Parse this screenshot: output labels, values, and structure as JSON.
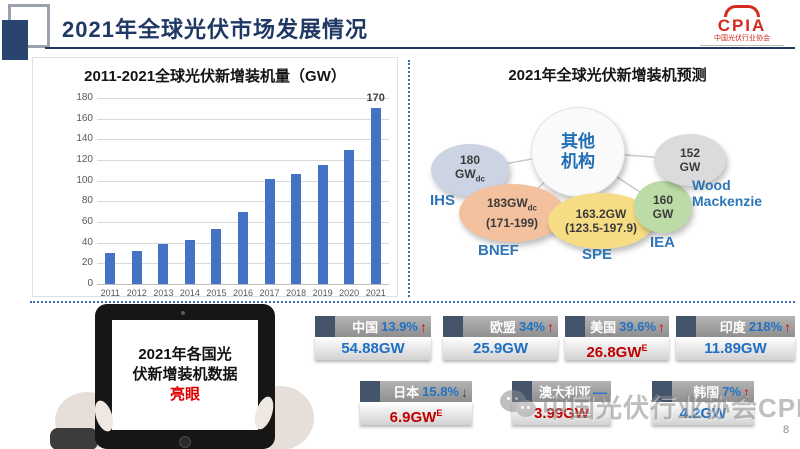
{
  "header": {
    "title": "2021年全球光伏市场发展情况",
    "logo_text": "CPIA",
    "logo_subtext": "中国光伏行业协会"
  },
  "chart_data": {
    "type": "bar",
    "title": "2011-2021全球光伏新增装机量（GW）",
    "categories": [
      "2011",
      "2012",
      "2013",
      "2014",
      "2015",
      "2016",
      "2017",
      "2018",
      "2019",
      "2020",
      "2021"
    ],
    "values": [
      30,
      32,
      39,
      43,
      53,
      70,
      102,
      106,
      115,
      130,
      170
    ],
    "xlabel": "",
    "ylabel": "GW",
    "ylim": [
      0,
      180
    ],
    "ytick_step": 20,
    "grid": true,
    "legend": "none",
    "bar_color": "#4472C4",
    "data_label": {
      "index": 10,
      "text": "170"
    }
  },
  "forecast": {
    "title": "2021年全球光伏新增装机预测",
    "center_label_line1": "其他",
    "center_label_line2": "机构",
    "bubbles": [
      {
        "id": "ihs",
        "line1": "180",
        "line1_sub": "",
        "line2": "GW",
        "line2_sub": "dc",
        "org": "IHS",
        "color": "#CCD4E4"
      },
      {
        "id": "bnef",
        "line1": "183GW",
        "line1_sub": "dc",
        "line2": "(171-199)",
        "line2_sub": "",
        "org": "BNEF",
        "color": "#F4C19E"
      },
      {
        "id": "spe",
        "line1": "163.2GW",
        "line1_sub": "",
        "line2": "(123.5-197.9)",
        "line2_sub": "",
        "org": "SPE",
        "color": "#F6DC85"
      },
      {
        "id": "iea",
        "line1": "160",
        "line1_sub": "",
        "line2": "GW",
        "line2_sub": "",
        "org": "IEA",
        "color": "#BCDBA6"
      },
      {
        "id": "wood",
        "line1": "152",
        "line1_sub": "",
        "line2": "GW",
        "line2_sub": "",
        "org": "Wood Mackenzie",
        "color": "#DBDBDB"
      }
    ]
  },
  "tablet": {
    "line1": "2021年各国光",
    "line2": "伏新增装机数据",
    "highlight": "亮眼"
  },
  "countries": [
    {
      "name": "中国",
      "pct": "13.9%",
      "trend": "up",
      "value": "54.88GW",
      "sup": "",
      "value_color": "#1F6FC4"
    },
    {
      "name": "欧盟",
      "pct": "34%",
      "trend": "up",
      "value": "25.9GW",
      "sup": "",
      "value_color": "#1F6FC4"
    },
    {
      "name": "美国",
      "pct": "39.6%",
      "trend": "up",
      "value": "26.8GW",
      "sup": "E",
      "value_color": "#C00000"
    },
    {
      "name": "印度",
      "pct": "218%",
      "trend": "up",
      "value": "11.89GW",
      "sup": "",
      "value_color": "#1F6FC4"
    },
    {
      "name": "日本",
      "pct": "15.8%",
      "trend": "down",
      "value": "6.9GW",
      "sup": "E",
      "value_color": "#C00000"
    },
    {
      "name": "澳大利亚",
      "pct": "",
      "trend": "flat",
      "value": "3.99GW",
      "sup": "",
      "value_color": "#C00000"
    },
    {
      "name": "韩国",
      "pct": "7%",
      "trend": "up",
      "value": "4.2GW",
      "sup": "",
      "value_color": "#1F6FC4"
    }
  ],
  "colors": {
    "title_navy": "#1F3864",
    "bar_blue": "#4472C4",
    "pct_blue": "#2272C3",
    "arrow_up_red": "#E00000",
    "arrow_down_green": "#375623",
    "flat_dash_blue": "#2272C3",
    "logo_red": "#D42A1E"
  },
  "watermark": {
    "text": "中国光伏行业协会CPIA"
  },
  "page_number": "8"
}
